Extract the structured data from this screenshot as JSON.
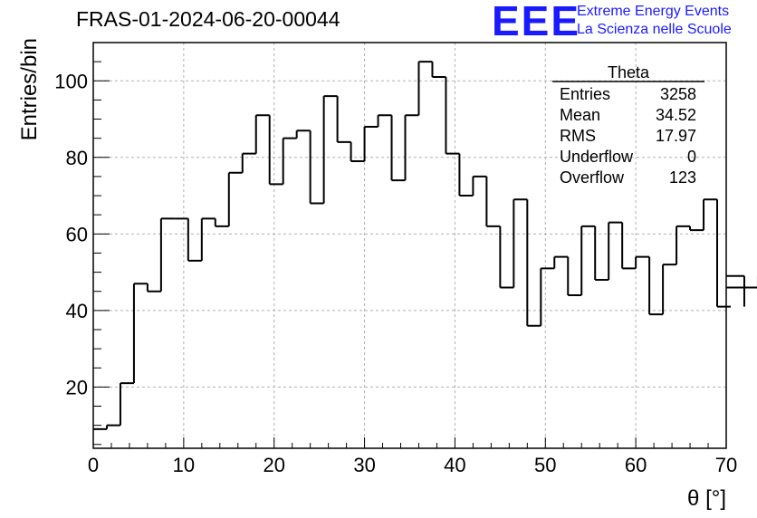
{
  "header": {
    "title": "FRAS-01-2024-06-20-00044",
    "logo_text": "EEE",
    "org_line1": "Extreme Energy Events",
    "org_line2": "La Scienza nelle Scuole"
  },
  "colors": {
    "logo": "#1a1aff",
    "line": "#000000",
    "grid": "#b0b0b0"
  },
  "stats": {
    "name": "Theta",
    "rows": [
      {
        "label": "Entries",
        "value": "3258"
      },
      {
        "label": "Mean",
        "value": "34.52"
      },
      {
        "label": "RMS",
        "value": "17.97"
      },
      {
        "label": "Underflow",
        "value": "0"
      },
      {
        "label": "Overflow",
        "value": "123"
      }
    ]
  },
  "chart_data": {
    "type": "histogram",
    "title": "FRAS-01-2024-06-20-00044",
    "xlabel": "θ [°]",
    "ylabel": "Entries/bin",
    "xlim": [
      0,
      70
    ],
    "ylim": [
      4,
      110
    ],
    "xticks": [
      0,
      10,
      20,
      30,
      40,
      50,
      60,
      70
    ],
    "yticks": [
      20,
      40,
      60,
      80,
      100
    ],
    "grid": true,
    "bin_width": 1.5,
    "bin_edges_start": 0,
    "values": [
      9,
      10,
      21,
      47,
      45,
      64,
      64,
      53,
      64,
      62,
      76,
      81,
      91,
      73,
      85,
      87,
      68,
      96,
      84,
      79,
      88,
      91,
      74,
      91,
      105,
      101,
      81,
      70,
      75,
      62,
      46,
      69,
      36,
      51,
      54,
      44,
      62,
      48,
      63,
      51,
      54,
      39,
      52,
      62,
      61,
      69,
      41,
      41,
      49,
      46
    ]
  }
}
